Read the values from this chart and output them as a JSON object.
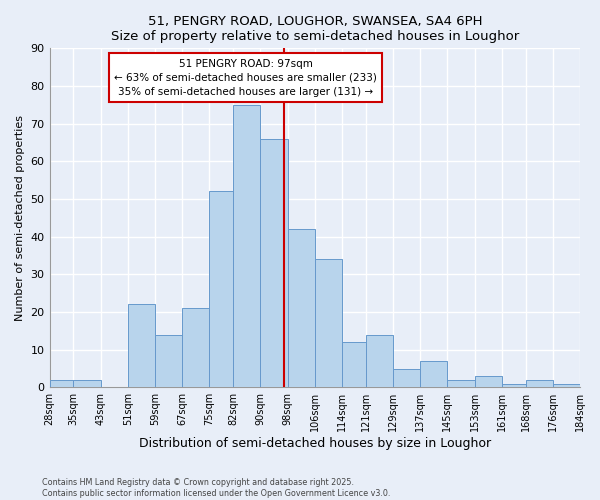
{
  "title": "51, PENGRY ROAD, LOUGHOR, SWANSEA, SA4 6PH",
  "subtitle": "Size of property relative to semi-detached houses in Loughor",
  "xlabel": "Distribution of semi-detached houses by size in Loughor",
  "ylabel": "Number of semi-detached properties",
  "bins": [
    28,
    35,
    43,
    51,
    59,
    67,
    75,
    82,
    90,
    98,
    106,
    114,
    121,
    129,
    137,
    145,
    153,
    161,
    168,
    176,
    184
  ],
  "counts": [
    2,
    2,
    0,
    22,
    14,
    21,
    52,
    75,
    66,
    42,
    34,
    12,
    14,
    5,
    7,
    2,
    3,
    1,
    2,
    1
  ],
  "bar_color": "#b8d4ec",
  "bar_edge_color": "#6699cc",
  "property_value": 97,
  "annotation_title": "51 PENGRY ROAD: 97sqm",
  "annotation_line1": "← 63% of semi-detached houses are smaller (233)",
  "annotation_line2": "35% of semi-detached houses are larger (131) →",
  "vline_color": "#cc0000",
  "annotation_box_color": "#ffffff",
  "annotation_box_edge": "#cc0000",
  "ylim": [
    0,
    90
  ],
  "yticks": [
    0,
    10,
    20,
    30,
    40,
    50,
    60,
    70,
    80,
    90
  ],
  "bg_color": "#e8eef8",
  "grid_color": "#ffffff",
  "footer1": "Contains HM Land Registry data © Crown copyright and database right 2025.",
  "footer2": "Contains public sector information licensed under the Open Government Licence v3.0."
}
